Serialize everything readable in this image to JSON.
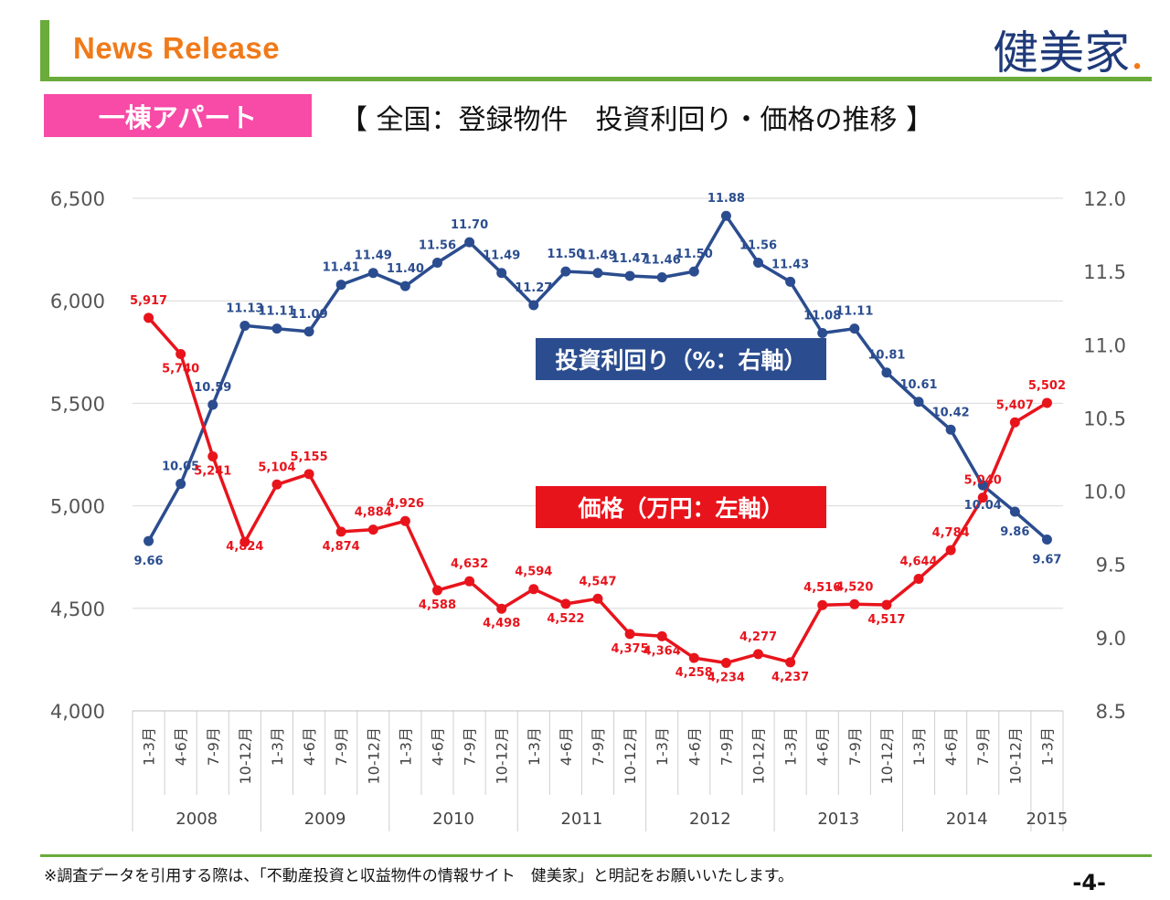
{
  "header": {
    "title": "News Release",
    "logo_text": "健美家",
    "logo_dot": ".",
    "badge": "一棟アパート",
    "subtitle": "【 全国：登録物件　投資利回り・価格の推移 】"
  },
  "colors": {
    "green": "#6aab3a",
    "orange": "#f07a1a",
    "pink": "#f84aa7",
    "blue": "#2b4d8f",
    "red": "#e8141c"
  },
  "chart_data": {
    "type": "line",
    "categories": [
      "1-3月",
      "4-6月",
      "7-9月",
      "10-12月",
      "1-3月",
      "4-6月",
      "7-9月",
      "10-12月",
      "1-3月",
      "4-6月",
      "7-9月",
      "10-12月",
      "1-3月",
      "4-6月",
      "7-9月",
      "10-12月",
      "1-3月",
      "4-6月",
      "7-9月",
      "10-12月",
      "1-3月",
      "4-6月",
      "7-9月",
      "10-12月",
      "1-3月",
      "4-6月",
      "7-9月",
      "10-12月",
      "1-3月"
    ],
    "years": [
      {
        "label": "2008",
        "count": 4
      },
      {
        "label": "2009",
        "count": 4
      },
      {
        "label": "2010",
        "count": 4
      },
      {
        "label": "2011",
        "count": 4
      },
      {
        "label": "2012",
        "count": 4
      },
      {
        "label": "2013",
        "count": 4
      },
      {
        "label": "2014",
        "count": 4
      },
      {
        "label": "2015",
        "count": 1
      }
    ],
    "series": [
      {
        "name": "投資利回り（%：右軸）",
        "axis": "right",
        "values": [
          9.66,
          10.05,
          10.59,
          11.13,
          11.11,
          11.09,
          11.41,
          11.49,
          11.4,
          11.56,
          11.7,
          11.49,
          11.27,
          11.5,
          11.49,
          11.47,
          11.46,
          11.5,
          11.88,
          11.56,
          11.43,
          11.08,
          11.11,
          10.81,
          10.61,
          10.42,
          10.04,
          9.86,
          9.67
        ],
        "labels": [
          "9.66",
          "10.05",
          "10.59",
          "11.13",
          "11.11",
          "11.09",
          "11.41",
          "11.49",
          "11.40",
          "11.56",
          "11.70",
          "11.49",
          "11.27",
          "11.50",
          "11.49",
          "11.47",
          "11.46",
          "11.50",
          "11.88",
          "11.56",
          "11.43",
          "11.08",
          "11.11",
          "10.81",
          "10.61",
          "10.42",
          "10.04",
          "9.86",
          "9.67"
        ]
      },
      {
        "name": "価格（万円：左軸）",
        "axis": "left",
        "values": [
          5917,
          5740,
          5241,
          4824,
          5104,
          5155,
          4874,
          4884,
          4926,
          4588,
          4632,
          4498,
          4594,
          4522,
          4547,
          4375,
          4364,
          4258,
          4234,
          4277,
          4237,
          4516,
          4520,
          4517,
          4644,
          4784,
          5040,
          5407,
          5502
        ],
        "labels": [
          "5,917",
          "5,740",
          "5,241",
          "4,824",
          "5,104",
          "5,155",
          "4,874",
          "4,884",
          "4,926",
          "4,588",
          "4,632",
          "4,498",
          "4,594",
          "4,522",
          "4,547",
          "4,375",
          "4,364",
          "4,258",
          "4,234",
          "4,277",
          "4,237",
          "4,516",
          "4,520",
          "4,517",
          "4,644",
          "4,784",
          "5,040",
          "5,407",
          "5,502"
        ]
      }
    ],
    "left_axis": {
      "min": 4000,
      "max": 6500,
      "ticks": [
        4000,
        4500,
        5000,
        5500,
        6000,
        6500
      ],
      "tick_labels": [
        "4,000",
        "4,500",
        "5,000",
        "5,500",
        "6,000",
        "6,500"
      ]
    },
    "right_axis": {
      "min": 8.5,
      "max": 12.0,
      "ticks": [
        8.5,
        9.0,
        9.5,
        10.0,
        10.5,
        11.0,
        11.5,
        12.0
      ],
      "tick_labels": [
        "8.5",
        "9.0",
        "9.5",
        "10.0",
        "10.5",
        "11.0",
        "11.5",
        "12.0"
      ]
    },
    "grid": true
  },
  "legend_labels": {
    "yield": "投資利回り（%：右軸）",
    "price": "価格（万円：左軸）"
  },
  "footer": {
    "note": "※調査データを引用する際は、「不動産投資と収益物件の情報サイト　健美家」と明記をお願いいたします。",
    "page": "-4-"
  }
}
